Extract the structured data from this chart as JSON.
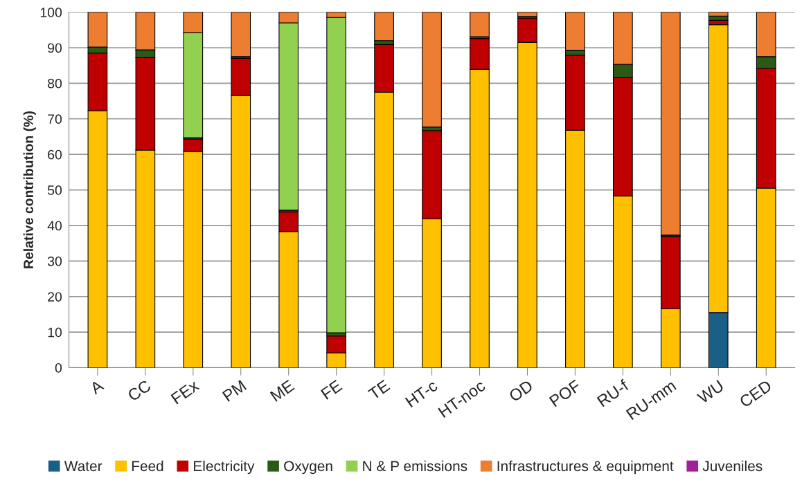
{
  "chart_data": {
    "type": "bar",
    "stacked": true,
    "ylabel": "Relative contribution (%)",
    "categories": [
      "A",
      "CC",
      "FEx",
      "PM",
      "ME",
      "FE",
      "TE",
      "HT-c",
      "HT-noc",
      "OD",
      "POF",
      "RU-f",
      "RU-mm",
      "WU",
      "CED"
    ],
    "series": [
      {
        "name": "Water",
        "color": "#1b5f86",
        "values": [
          null,
          null,
          null,
          null,
          null,
          null,
          null,
          null,
          null,
          null,
          null,
          null,
          null,
          15.5,
          null
        ]
      },
      {
        "name": "Feed",
        "color": "#ffc000",
        "values": [
          72.3,
          61.2,
          60.8,
          76.6,
          38.3,
          4.2,
          77.5,
          41.9,
          83.9,
          91.5,
          66.8,
          48.3,
          16.6,
          81.0,
          50.5
        ]
      },
      {
        "name": "Electricity",
        "color": "#c00000",
        "values": [
          16.2,
          26.0,
          3.5,
          10.4,
          5.5,
          4.7,
          13.4,
          24.8,
          8.7,
          6.8,
          21.1,
          33.3,
          20.3,
          1.2,
          33.7
        ]
      },
      {
        "name": "Oxygen",
        "color": "#2b5a17",
        "values": [
          1.7,
          2.2,
          0.4,
          0.5,
          0.5,
          0.9,
          1.1,
          1.0,
          0.5,
          0.5,
          1.4,
          3.7,
          0.4,
          1.2,
          3.3
        ]
      },
      {
        "name": "N & P emissions",
        "color": "#92d050",
        "values": [
          null,
          null,
          29.5,
          null,
          52.7,
          88.7,
          null,
          null,
          null,
          null,
          null,
          null,
          null,
          null,
          null
        ]
      },
      {
        "name": "Infrastructures & equipment",
        "color": "#ed7d31",
        "values": [
          9.8,
          10.6,
          5.8,
          12.5,
          3.0,
          1.5,
          8.0,
          32.3,
          6.9,
          1.2,
          10.7,
          14.7,
          62.7,
          1.1,
          12.5
        ]
      },
      {
        "name": "Juveniles",
        "color": "#a0209a",
        "values": [
          null,
          null,
          null,
          null,
          null,
          null,
          null,
          null,
          null,
          null,
          null,
          null,
          null,
          null,
          null
        ]
      }
    ],
    "ylim": [
      0,
      100
    ],
    "yticks": [
      0,
      10,
      20,
      30,
      40,
      50,
      60,
      70,
      80,
      90,
      100
    ],
    "grid": "y",
    "legend": "bottom"
  }
}
